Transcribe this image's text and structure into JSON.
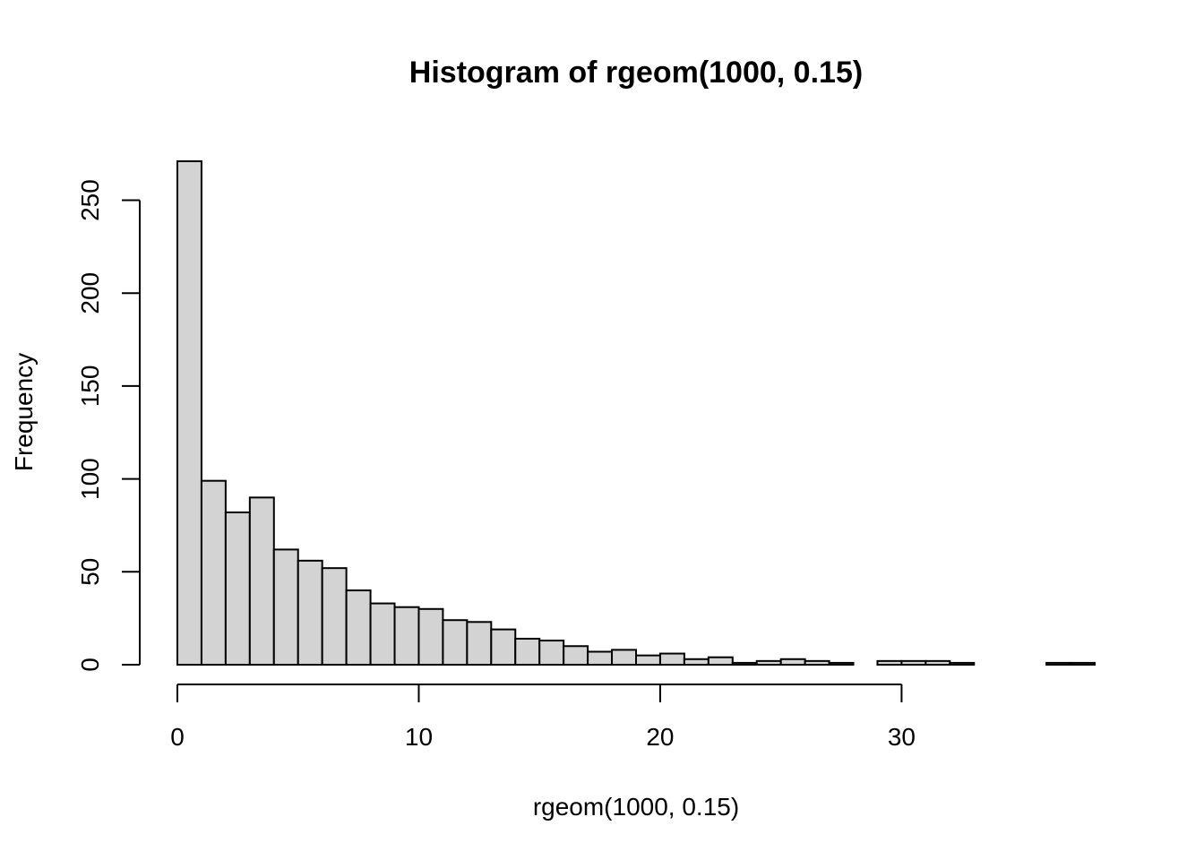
{
  "chart_data": {
    "type": "bar",
    "title": "Histogram of rgeom(1000, 0.15)",
    "xlabel": "rgeom(1000, 0.15)",
    "ylabel": "Frequency",
    "bins": [
      [
        0,
        1
      ],
      [
        1,
        2
      ],
      [
        2,
        3
      ],
      [
        3,
        4
      ],
      [
        4,
        5
      ],
      [
        5,
        6
      ],
      [
        6,
        7
      ],
      [
        7,
        8
      ],
      [
        8,
        9
      ],
      [
        9,
        10
      ],
      [
        10,
        11
      ],
      [
        11,
        12
      ],
      [
        12,
        13
      ],
      [
        13,
        14
      ],
      [
        14,
        15
      ],
      [
        15,
        16
      ],
      [
        16,
        17
      ],
      [
        17,
        18
      ],
      [
        18,
        19
      ],
      [
        19,
        20
      ],
      [
        20,
        21
      ],
      [
        21,
        22
      ],
      [
        22,
        23
      ],
      [
        23,
        24
      ],
      [
        24,
        25
      ],
      [
        25,
        26
      ],
      [
        26,
        27
      ],
      [
        27,
        28
      ],
      [
        28,
        29
      ],
      [
        29,
        30
      ],
      [
        30,
        31
      ],
      [
        31,
        32
      ],
      [
        32,
        33
      ],
      [
        33,
        34
      ],
      [
        34,
        35
      ],
      [
        35,
        36
      ],
      [
        36,
        37
      ],
      [
        37,
        38
      ]
    ],
    "values": [
      271,
      99,
      82,
      90,
      62,
      56,
      52,
      40,
      33,
      31,
      30,
      24,
      23,
      19,
      14,
      13,
      10,
      7,
      8,
      5,
      6,
      3,
      4,
      1,
      2,
      3,
      2,
      1,
      0,
      2,
      2,
      2,
      1,
      0,
      0,
      0,
      1,
      1
    ],
    "xlim": [
      0,
      38
    ],
    "ylim": [
      0,
      271
    ],
    "x_ticks": [
      0,
      10,
      20,
      30
    ],
    "x_tick_labels": [
      "0",
      "10",
      "20",
      "30"
    ],
    "y_ticks": [
      0,
      50,
      100,
      150,
      200,
      250
    ],
    "y_tick_labels": [
      "0",
      "50",
      "100",
      "150",
      "200",
      "250"
    ],
    "grid": false,
    "legend": "none",
    "bar_color": "#d3d3d3",
    "edge_color": "#000000"
  }
}
